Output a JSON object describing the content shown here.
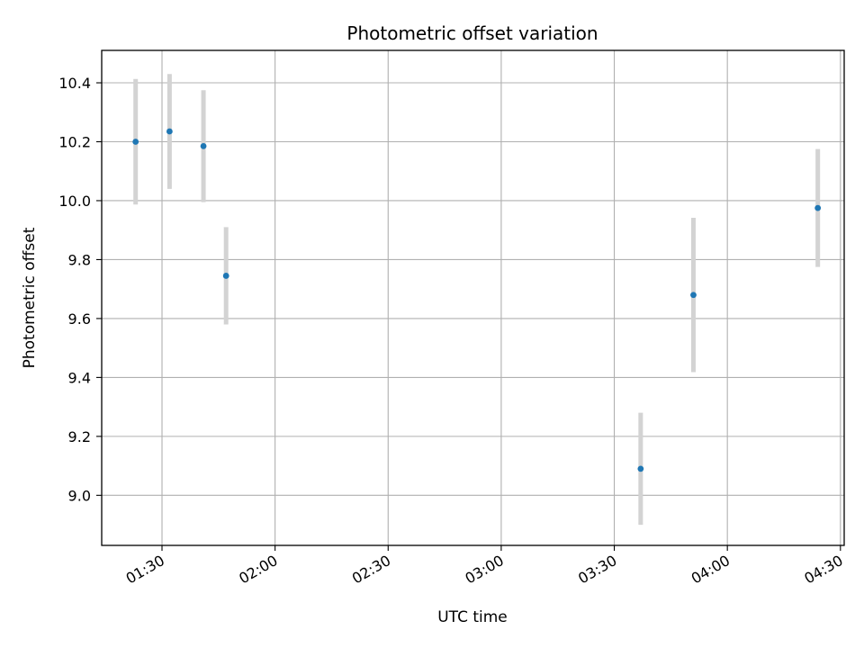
{
  "chart_data": {
    "type": "scatter",
    "title": "Photometric offset variation",
    "xlabel": "UTC time",
    "ylabel": "Photometric offset",
    "grid": true,
    "xlim": [
      "01:14",
      "04:31"
    ],
    "ylim": [
      8.83,
      10.51
    ],
    "xticks": [
      "01:30",
      "02:00",
      "02:30",
      "03:00",
      "03:30",
      "04:00",
      "04:30"
    ],
    "yticks": [
      "9.0",
      "9.2",
      "9.4",
      "9.6",
      "9.8",
      "10.0",
      "10.2",
      "10.4"
    ],
    "series": [
      {
        "x": [
          "01:23",
          "01:32",
          "01:41",
          "01:47",
          "03:37",
          "03:51",
          "04:24"
        ],
        "y": [
          10.2,
          10.235,
          10.185,
          9.745,
          9.09,
          9.68,
          9.975
        ],
        "yerr": [
          0.213,
          0.195,
          0.19,
          0.165,
          0.19,
          0.262,
          0.2
        ]
      }
    ],
    "colors": {
      "point": "#1f77b4",
      "errorbar": "#d3d3d3",
      "grid": "#b0b0b0"
    }
  }
}
